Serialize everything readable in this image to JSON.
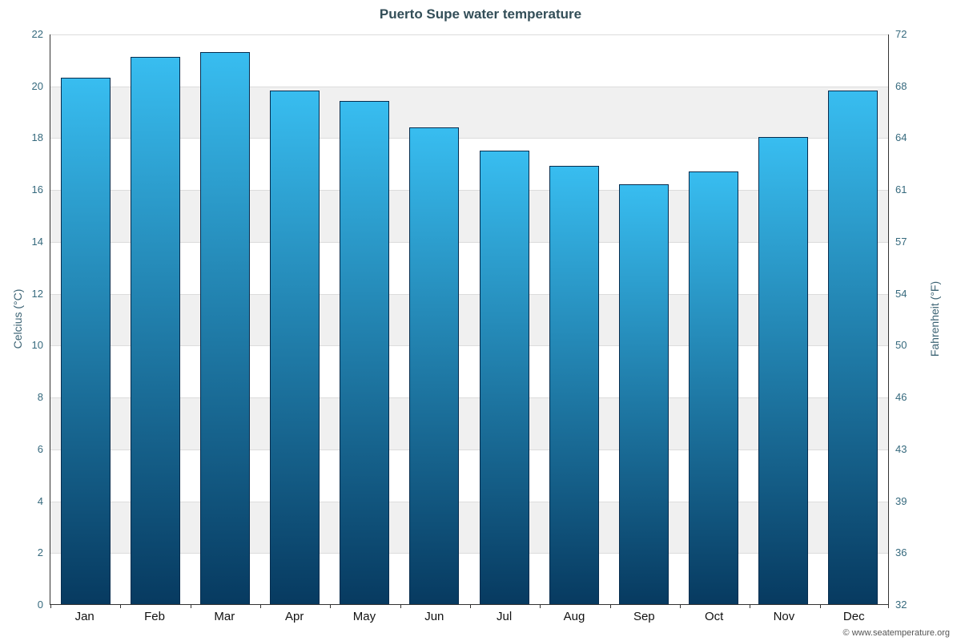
{
  "page": {
    "footer": "© www.seatemperature.org"
  },
  "chart_data": {
    "type": "bar",
    "title": "Puerto Supe water temperature",
    "categories": [
      "Jan",
      "Feb",
      "Mar",
      "Apr",
      "May",
      "Jun",
      "Jul",
      "Aug",
      "Sep",
      "Oct",
      "Nov",
      "Dec"
    ],
    "values": [
      20.3,
      21.1,
      21.3,
      19.8,
      19.4,
      18.4,
      17.5,
      16.9,
      16.2,
      16.7,
      18.0,
      19.8
    ],
    "ylabel_left": "Celcius (°C)",
    "ylabel_right": "Fahrenheit (°F)",
    "xlabel": "",
    "y_ticks_celsius": [
      0,
      2,
      4,
      6,
      8,
      10,
      12,
      14,
      16,
      18,
      20,
      22
    ],
    "y_ticks_fahrenheit": [
      "32",
      "36",
      "39",
      "43",
      "46",
      "50",
      "54",
      "57",
      "61",
      "64",
      "68",
      "72"
    ],
    "ylim": [
      0,
      22
    ],
    "grid": true,
    "legend": "none",
    "band_color": "#f0f0f0",
    "bar_color_top": "#38bdf0",
    "bar_color_bottom": "#073a60",
    "bar_border_color": "#062c4e"
  }
}
